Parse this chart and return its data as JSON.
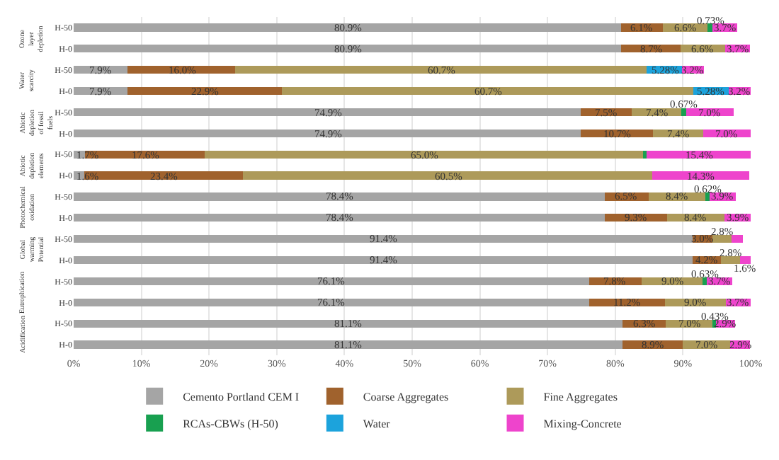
{
  "chart_data": {
    "type": "bar",
    "orientation": "horizontal",
    "stacked": true,
    "legend": "bottom",
    "grid": "x",
    "categories": [
      "H-50",
      "H-0",
      "H-50",
      "H-0",
      "H-50",
      "H-0",
      "H-50",
      "H-0",
      "H-50",
      "H-0",
      "H-50",
      "H-0",
      "H-50",
      "H-0",
      "H-50",
      "H-0"
    ],
    "annotations": [
      "Ozone layer depletion",
      "Water scarcity",
      "Abiotic depletion of fossil fuels",
      "Abiotic depletion elements",
      "Photochemical oxidation",
      "Global warming Potential",
      "Eutrophication",
      "Acidification"
    ],
    "xlim": [
      0,
      100
    ],
    "xticks": [
      {
        "value": 0,
        "label": "0%"
      },
      {
        "value": 10,
        "label": "10%"
      },
      {
        "value": 20,
        "label": "20%"
      },
      {
        "value": 30,
        "label": "30%"
      },
      {
        "value": 40,
        "label": "40%"
      },
      {
        "value": 50,
        "label": "50%"
      },
      {
        "value": 60,
        "label": "60%"
      },
      {
        "value": 70,
        "label": "70%"
      },
      {
        "value": 80,
        "label": "80%"
      },
      {
        "value": 90,
        "label": "90%"
      },
      {
        "value": 100,
        "label": "100%"
      }
    ],
    "series": [
      {
        "name": "Cemento Portland CEM I",
        "color": "#a5a5a5",
        "values": [
          80.9,
          80.9,
          7.9,
          7.9,
          74.9,
          74.9,
          1.7,
          1.6,
          78.4,
          78.4,
          91.4,
          91.4,
          76.1,
          76.1,
          81.1,
          81.1
        ],
        "value_labels": [
          "80.9%",
          "80.9%",
          "7.9%",
          "7.9%",
          "74.9%",
          "74.9%",
          "1.7%",
          "1.6%",
          "78.4%",
          "78.4%",
          "91.4%",
          "91.4%",
          "76.1%",
          "76.1%",
          "81.1%",
          "81.1%"
        ]
      },
      {
        "name": "Coarse Aggregates",
        "color": "#a0622d",
        "values": [
          6.1,
          8.7,
          16.0,
          22.9,
          7.5,
          10.7,
          17.6,
          23.4,
          6.5,
          9.3,
          3.0,
          4.2,
          7.8,
          11.2,
          6.3,
          8.9
        ],
        "value_labels": [
          "6.1%",
          "8.7%",
          "16.0%",
          "22.9%",
          "7.5%",
          "10.7%",
          "17.6%",
          "23.4%",
          "6.5%",
          "9.3%",
          "3.0%",
          "4.2%",
          "7.8%",
          "11.2%",
          "6.3%",
          "8.9%"
        ]
      },
      {
        "name": "Fine Aggregates",
        "color": "#ad9a5a",
        "values": [
          6.6,
          6.6,
          60.7,
          60.7,
          7.4,
          7.4,
          65.0,
          60.5,
          8.4,
          8.4,
          2.8,
          2.8,
          9.0,
          9.0,
          7.0,
          7.0
        ],
        "value_labels": [
          "6.6%",
          "6.6%",
          "60.7%",
          "60.7%",
          "7.4%",
          "7.4%",
          "65.0%",
          "60.5%",
          "8.4%",
          "8.4%",
          "2.8%",
          "2.8%",
          "9.0%",
          "9.0%",
          "7.0%",
          "7.0%"
        ]
      },
      {
        "name": "RCAs-CBWs (H-50)",
        "color": "#18a050",
        "values": [
          0.73,
          null,
          null,
          null,
          0.67,
          null,
          0.3,
          null,
          0.62,
          null,
          null,
          null,
          0.63,
          null,
          0.43,
          null
        ],
        "value_labels": [
          "0.73%",
          null,
          null,
          null,
          "0.67%",
          null,
          null,
          null,
          "0.62%",
          null,
          null,
          null,
          "0.63%",
          null,
          "0.43%",
          null
        ]
      },
      {
        "name": "Water",
        "color": "#1ca3dc",
        "values": [
          null,
          null,
          5.28,
          5.28,
          null,
          null,
          null,
          null,
          null,
          null,
          null,
          null,
          null,
          null,
          null,
          null
        ],
        "value_labels": [
          null,
          null,
          "5.28%",
          "5.28%",
          null,
          null,
          null,
          null,
          null,
          null,
          null,
          null,
          null,
          null,
          null,
          null
        ]
      },
      {
        "name": "Mixing-Concrete",
        "color": "#ee44cc",
        "values": [
          3.7,
          3.7,
          3.2,
          3.2,
          7.0,
          7.0,
          15.4,
          14.3,
          3.9,
          3.9,
          1.6,
          1.6,
          3.7,
          3.7,
          2.9,
          2.9
        ],
        "value_labels": [
          "3.7%",
          "3.7%",
          "3.2%",
          "3.2%",
          "7.0%",
          "7.0%",
          "15.4%",
          "14.3%",
          "3.9%",
          "3.9%",
          null,
          "1.6%",
          "3.7%",
          "3.7%",
          "2.9%",
          "2.9%"
        ]
      }
    ]
  }
}
